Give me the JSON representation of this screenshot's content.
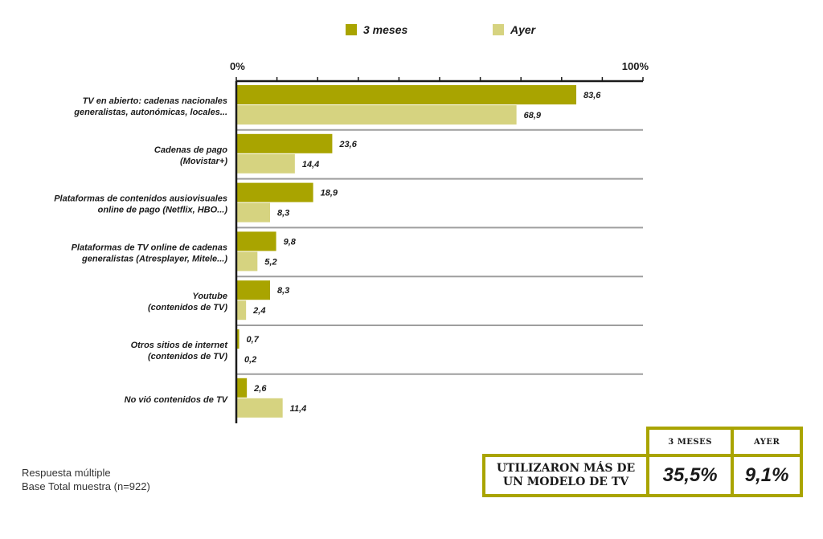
{
  "chart_data": {
    "type": "bar",
    "orientation": "horizontal",
    "categories": [
      [
        "TV en abierto: cadenas nacionales",
        "generalistas, autonómicas, locales..."
      ],
      [
        "Cadenas de pago",
        "(Movistar+)"
      ],
      [
        "Plataformas de contenidos ausiovisuales",
        "online de pago (Netflix, HBO...)"
      ],
      [
        "Plataformas de TV online de cadenas",
        "generalistas (Atresplayer, Mitele...)"
      ],
      [
        "Youtube",
        "(contenidos de TV)"
      ],
      [
        "Otros sitios de internet",
        "(contenidos de TV)"
      ],
      [
        "No vió contenidos de TV"
      ]
    ],
    "series": [
      {
        "name": "3 meses",
        "color": "#a9a400",
        "values": [
          83.6,
          23.6,
          18.9,
          9.8,
          8.3,
          0.7,
          2.6
        ],
        "labels": [
          "83,6",
          "23,6",
          "18,9",
          "9,8",
          "8,3",
          "0,7",
          "2,6"
        ]
      },
      {
        "name": "Ayer",
        "color": "#d6d380",
        "values": [
          68.9,
          14.4,
          8.3,
          5.2,
          2.4,
          0.2,
          11.4
        ],
        "labels": [
          "68,9",
          "14,4",
          "8,3",
          "5,2",
          "2,4",
          "0,2",
          "11,4"
        ]
      }
    ],
    "xlim": [
      0,
      100
    ],
    "tick_labels": [
      "0%",
      "100%"
    ],
    "legend_position": "top",
    "grid": false
  },
  "notes": {
    "line1": "Respuesta múltiple",
    "line2": "Base Total muestra (n=922)"
  },
  "summary": {
    "header_3m": "3 MESES",
    "header_ayer": "AYER",
    "label_line1": "UTILIZARON MÁS DE",
    "label_line2": "UN MODELO DE TV",
    "value_3m": "35,5%",
    "value_ayer": "9,1%",
    "border_color": "#a9a400"
  }
}
